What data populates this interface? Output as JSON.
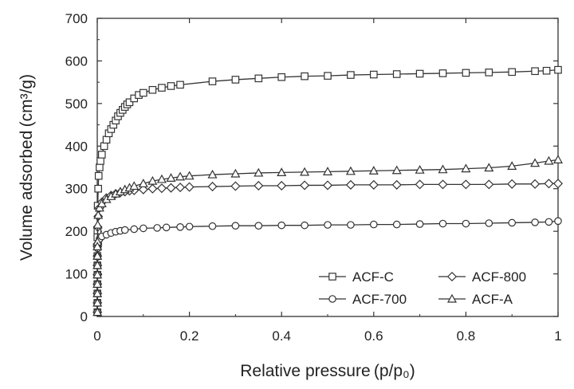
{
  "chart_data": {
    "type": "line",
    "xlabel": "Relative pressure (p/p₀)",
    "ylabel": "Volume adsorbed (cm³/g)",
    "xlim": [
      0,
      1
    ],
    "ylim": [
      0,
      700
    ],
    "x_ticks": [
      "0",
      "0.2",
      "0.4",
      "0.6",
      "0.8",
      "1"
    ],
    "y_ticks": [
      "0",
      "100",
      "200",
      "300",
      "400",
      "500",
      "600",
      "700"
    ],
    "grid": false,
    "legend_position": "bottom-right",
    "series": [
      {
        "name": "ACF-C",
        "marker": "square",
        "x": [
          0.0005,
          0.001,
          0.002,
          0.003,
          0.005,
          0.007,
          0.01,
          0.015,
          0.02,
          0.025,
          0.03,
          0.035,
          0.04,
          0.045,
          0.05,
          0.055,
          0.06,
          0.065,
          0.07,
          0.08,
          0.09,
          0.1,
          0.12,
          0.14,
          0.16,
          0.18,
          0.25,
          0.3,
          0.35,
          0.4,
          0.45,
          0.5,
          0.55,
          0.6,
          0.65,
          0.7,
          0.75,
          0.8,
          0.85,
          0.9,
          0.95,
          0.975,
          1.0
        ],
        "y": [
          200,
          260,
          300,
          330,
          350,
          365,
          380,
          400,
          415,
          430,
          440,
          450,
          460,
          470,
          478,
          485,
          492,
          498,
          503,
          512,
          520,
          525,
          532,
          537,
          541,
          544,
          552,
          556,
          559,
          562,
          564,
          565,
          567,
          568,
          569,
          570,
          571,
          572,
          573,
          574,
          576,
          577,
          579
        ]
      },
      {
        "name": "ACF-800",
        "marker": "diamond",
        "x": [
          0.0005,
          0.001,
          0.002,
          0.005,
          0.01,
          0.02,
          0.03,
          0.04,
          0.05,
          0.06,
          0.07,
          0.08,
          0.1,
          0.12,
          0.14,
          0.16,
          0.18,
          0.2,
          0.25,
          0.3,
          0.35,
          0.4,
          0.45,
          0.5,
          0.55,
          0.6,
          0.65,
          0.7,
          0.75,
          0.8,
          0.85,
          0.9,
          0.95,
          0.98,
          1.0
        ],
        "y": [
          170,
          210,
          235,
          255,
          268,
          278,
          284,
          288,
          291,
          293,
          295,
          296,
          298,
          300,
          301,
          302,
          303,
          304,
          305,
          306,
          307,
          307,
          308,
          308,
          309,
          309,
          309,
          310,
          310,
          310,
          310,
          311,
          311,
          312,
          312
        ]
      },
      {
        "name": "ACF-700",
        "marker": "circle",
        "x": [
          0.0005,
          0.001,
          0.002,
          0.005,
          0.01,
          0.02,
          0.03,
          0.04,
          0.05,
          0.06,
          0.08,
          0.1,
          0.13,
          0.15,
          0.18,
          0.2,
          0.25,
          0.3,
          0.35,
          0.4,
          0.45,
          0.5,
          0.55,
          0.6,
          0.65,
          0.7,
          0.75,
          0.8,
          0.85,
          0.9,
          0.95,
          0.98,
          1.0
        ],
        "y": [
          140,
          160,
          172,
          182,
          188,
          192,
          196,
          199,
          201,
          203,
          205,
          207,
          208,
          209,
          210,
          211,
          212,
          213,
          213,
          214,
          214,
          215,
          215,
          216,
          216,
          217,
          218,
          218,
          219,
          220,
          221,
          222,
          224
        ]
      },
      {
        "name": "ACF-A",
        "marker": "triangle",
        "x": [
          0.0005,
          0.001,
          0.002,
          0.005,
          0.01,
          0.02,
          0.03,
          0.04,
          0.05,
          0.06,
          0.07,
          0.08,
          0.1,
          0.12,
          0.14,
          0.16,
          0.18,
          0.2,
          0.25,
          0.3,
          0.35,
          0.4,
          0.45,
          0.5,
          0.55,
          0.6,
          0.65,
          0.7,
          0.75,
          0.8,
          0.85,
          0.9,
          0.95,
          0.98,
          1.0
        ],
        "y": [
          175,
          215,
          238,
          255,
          265,
          275,
          282,
          288,
          293,
          298,
          302,
          306,
          312,
          318,
          322,
          325,
          328,
          330,
          333,
          335,
          337,
          338,
          339,
          340,
          341,
          342,
          343,
          344,
          345,
          347,
          349,
          353,
          360,
          365,
          368
        ]
      }
    ],
    "legend": {
      "columns": 2,
      "order": [
        "ACF-C",
        "ACF-800",
        "ACF-700",
        "ACF-A"
      ]
    }
  }
}
